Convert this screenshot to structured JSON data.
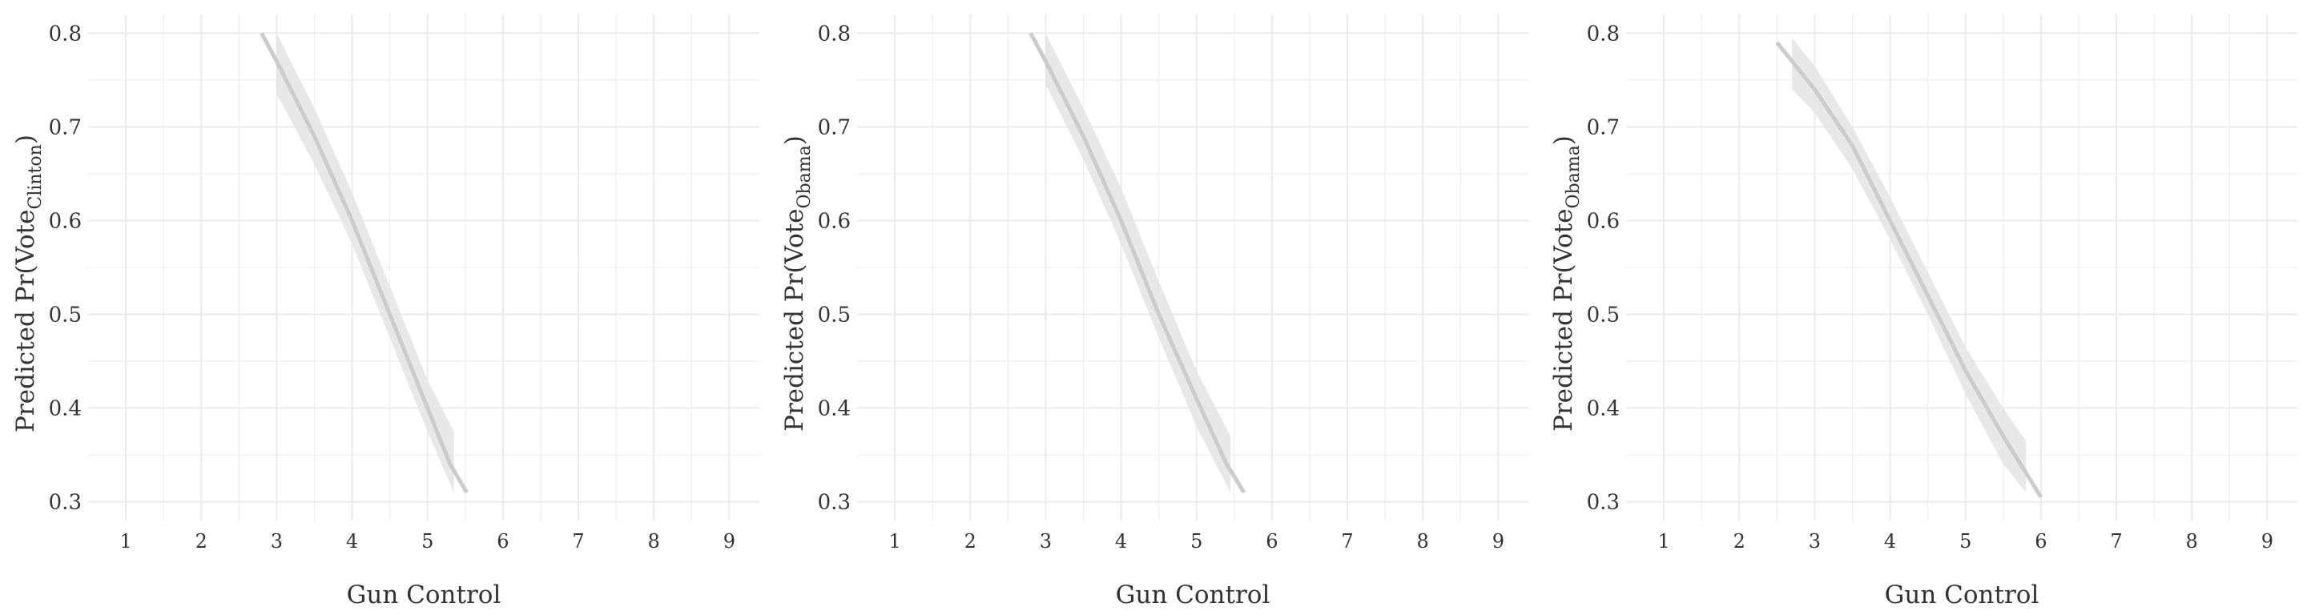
{
  "chart_data": [
    {
      "type": "line",
      "title": "",
      "xlabel": "Gun Control",
      "ylabel": {
        "prefix": "Predicted Pr(Vote",
        "subscript": "Clinton",
        "suffix": ")"
      },
      "xlim": [
        0.5,
        9.4
      ],
      "ylim": [
        0.28,
        0.82
      ],
      "xticks": [
        1,
        2,
        3,
        4,
        5,
        6,
        7,
        8,
        9
      ],
      "yticks": [
        0.3,
        0.4,
        0.5,
        0.6,
        0.7,
        0.8
      ],
      "ytick_labels": [
        "0.3",
        "0.4",
        "0.5",
        "0.6",
        "0.7",
        "0.8"
      ],
      "grid": true,
      "colors": {
        "line": "#cccccc",
        "band": "#e6e6e6",
        "grid": "#ebebeb"
      },
      "series": [
        {
          "x": [
            2.8,
            3.0,
            3.5,
            4.0,
            4.5,
            5.0,
            5.3,
            5.52
          ],
          "y": [
            0.8,
            0.77,
            0.69,
            0.6,
            0.5,
            0.4,
            0.34,
            0.31
          ]
        }
      ],
      "confidence_band": {
        "x": [
          3.0,
          3.5,
          4.0,
          4.5,
          5.0,
          5.35
        ],
        "lower": [
          0.735,
          0.66,
          0.575,
          0.475,
          0.375,
          0.31
        ],
        "upper": [
          0.8,
          0.72,
          0.63,
          0.53,
          0.43,
          0.375
        ]
      }
    },
    {
      "type": "line",
      "title": "",
      "xlabel": "Gun Control",
      "ylabel": {
        "prefix": "Predicted Pr(Vote",
        "subscript": "Obama",
        "suffix": ")"
      },
      "xlim": [
        0.5,
        9.4
      ],
      "ylim": [
        0.28,
        0.82
      ],
      "xticks": [
        1,
        2,
        3,
        4,
        5,
        6,
        7,
        8,
        9
      ],
      "yticks": [
        0.3,
        0.4,
        0.5,
        0.6,
        0.7,
        0.8
      ],
      "ytick_labels": [
        "0.3",
        "0.4",
        "0.5",
        "0.6",
        "0.7",
        "0.8"
      ],
      "grid": true,
      "colors": {
        "line": "#cccccc",
        "band": "#e6e6e6",
        "grid": "#ebebeb"
      },
      "series": [
        {
          "x": [
            2.8,
            3.0,
            3.5,
            4.0,
            4.5,
            5.0,
            5.4,
            5.63
          ],
          "y": [
            0.8,
            0.77,
            0.69,
            0.6,
            0.5,
            0.41,
            0.34,
            0.31
          ]
        }
      ],
      "confidence_band": {
        "x": [
          3.0,
          3.5,
          4.0,
          4.5,
          5.0,
          5.45
        ],
        "lower": [
          0.745,
          0.665,
          0.575,
          0.475,
          0.38,
          0.31
        ],
        "upper": [
          0.8,
          0.72,
          0.635,
          0.535,
          0.44,
          0.37
        ]
      }
    },
    {
      "type": "line",
      "title": "",
      "xlabel": "Gun Control",
      "ylabel": {
        "prefix": "Predicted Pr(Vote",
        "subscript": "Obama",
        "suffix": ")"
      },
      "xlim": [
        0.5,
        9.4
      ],
      "ylim": [
        0.28,
        0.82
      ],
      "xticks": [
        1,
        2,
        3,
        4,
        5,
        6,
        7,
        8,
        9
      ],
      "yticks": [
        0.3,
        0.4,
        0.5,
        0.6,
        0.7,
        0.8
      ],
      "ytick_labels": [
        "0.3",
        "0.4",
        "0.5",
        "0.6",
        "0.7",
        "0.8"
      ],
      "grid": true,
      "colors": {
        "line": "#cccccc",
        "band": "#e6e6e6",
        "grid": "#ebebeb"
      },
      "series": [
        {
          "x": [
            2.5,
            3.0,
            3.5,
            4.0,
            4.5,
            5.0,
            5.5,
            6.0
          ],
          "y": [
            0.79,
            0.74,
            0.68,
            0.6,
            0.52,
            0.44,
            0.37,
            0.305
          ]
        }
      ],
      "confidence_band": {
        "x": [
          2.7,
          3.0,
          3.5,
          4.0,
          4.5,
          5.0,
          5.5,
          5.8
        ],
        "lower": [
          0.74,
          0.715,
          0.655,
          0.58,
          0.5,
          0.415,
          0.34,
          0.31
        ],
        "upper": [
          0.795,
          0.765,
          0.7,
          0.625,
          0.545,
          0.465,
          0.4,
          0.365
        ]
      }
    }
  ]
}
